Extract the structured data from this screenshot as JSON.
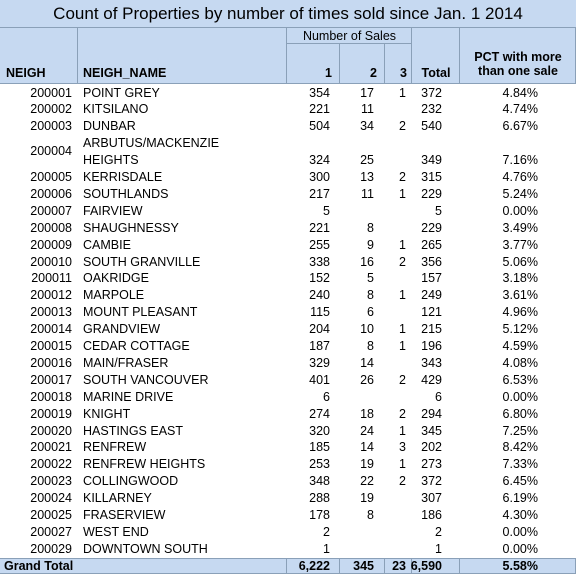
{
  "title": "Count of Properties by number of times sold since Jan. 1 2014",
  "group_header": "Number of Sales",
  "columns": [
    "NEIGH",
    "NEIGH_NAME",
    "1",
    "2",
    "3",
    "Total",
    "PCT with more than one sale"
  ],
  "rows": [
    [
      "200001",
      "POINT GREY",
      354,
      17,
      1,
      372,
      "4.84%"
    ],
    [
      "200002",
      "KITSILANO",
      221,
      11,
      null,
      232,
      "4.74%"
    ],
    [
      "200003",
      "DUNBAR",
      504,
      34,
      2,
      540,
      "6.67%"
    ],
    [
      "200004",
      "ARBUTUS/MACKENZIE HEIGHTS",
      324,
      25,
      null,
      349,
      "7.16%"
    ],
    [
      "200005",
      "KERRISDALE",
      300,
      13,
      2,
      315,
      "4.76%"
    ],
    [
      "200006",
      "SOUTHLANDS",
      217,
      11,
      1,
      229,
      "5.24%"
    ],
    [
      "200007",
      "FAIRVIEW",
      5,
      null,
      null,
      5,
      "0.00%"
    ],
    [
      "200008",
      "SHAUGHNESSY",
      221,
      8,
      null,
      229,
      "3.49%"
    ],
    [
      "200009",
      "CAMBIE",
      255,
      9,
      1,
      265,
      "3.77%"
    ],
    [
      "200010",
      "SOUTH GRANVILLE",
      338,
      16,
      2,
      356,
      "5.06%"
    ],
    [
      "200011",
      "OAKRIDGE",
      152,
      5,
      null,
      157,
      "3.18%"
    ],
    [
      "200012",
      "MARPOLE",
      240,
      8,
      1,
      249,
      "3.61%"
    ],
    [
      "200013",
      "MOUNT PLEASANT",
      115,
      6,
      null,
      121,
      "4.96%"
    ],
    [
      "200014",
      "GRANDVIEW",
      204,
      10,
      1,
      215,
      "5.12%"
    ],
    [
      "200015",
      "CEDAR COTTAGE",
      187,
      8,
      1,
      196,
      "4.59%"
    ],
    [
      "200016",
      "MAIN/FRASER",
      329,
      14,
      null,
      343,
      "4.08%"
    ],
    [
      "200017",
      "SOUTH VANCOUVER",
      401,
      26,
      2,
      429,
      "6.53%"
    ],
    [
      "200018",
      "MARINE DRIVE",
      6,
      null,
      null,
      6,
      "0.00%"
    ],
    [
      "200019",
      "KNIGHT",
      274,
      18,
      2,
      294,
      "6.80%"
    ],
    [
      "200020",
      "HASTINGS EAST",
      320,
      24,
      1,
      345,
      "7.25%"
    ],
    [
      "200021",
      "RENFREW",
      185,
      14,
      3,
      202,
      "8.42%"
    ],
    [
      "200022",
      "RENFREW HEIGHTS",
      253,
      19,
      1,
      273,
      "7.33%"
    ],
    [
      "200023",
      "COLLINGWOOD",
      348,
      22,
      2,
      372,
      "6.45%"
    ],
    [
      "200024",
      "KILLARNEY",
      288,
      19,
      null,
      307,
      "6.19%"
    ],
    [
      "200025",
      "FRASERVIEW",
      178,
      8,
      null,
      186,
      "4.30%"
    ],
    [
      "200027",
      "WEST END",
      2,
      null,
      null,
      2,
      "0.00%"
    ],
    [
      "200029",
      "DOWNTOWN SOUTH",
      1,
      null,
      null,
      1,
      "0.00%"
    ]
  ],
  "total": [
    "Grand Total",
    "6,222",
    345,
    23,
    "6,590",
    "5.58%"
  ]
}
